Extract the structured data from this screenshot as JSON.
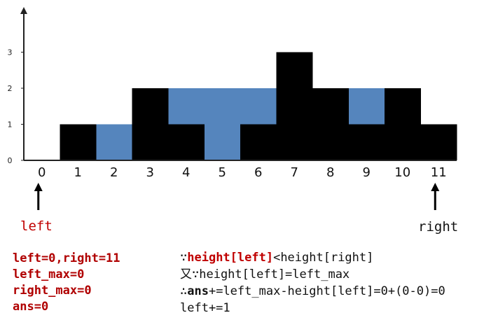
{
  "chart_data": {
    "type": "bar",
    "categories": [
      "0",
      "1",
      "2",
      "3",
      "4",
      "5",
      "6",
      "7",
      "8",
      "9",
      "10",
      "11"
    ],
    "heights": [
      0,
      1,
      0,
      2,
      1,
      0,
      1,
      3,
      2,
      1,
      2,
      1
    ],
    "water": [
      0,
      0,
      1,
      0,
      1,
      2,
      1,
      0,
      0,
      1,
      0,
      0
    ],
    "y_ticks": [
      "0",
      "1",
      "2",
      "3"
    ],
    "ylim": [
      0,
      4.2
    ],
    "bar_color": "#000000",
    "water_color": "#5585bd"
  },
  "pointers": {
    "left": {
      "label": "left",
      "index": 0,
      "color": "#c00000"
    },
    "right": {
      "label": "right",
      "index": 11,
      "color": "#111111"
    }
  },
  "variables": [
    "left=0,right=11",
    "left_max=0",
    "right_max=0",
    "ans=0"
  ],
  "explanation": {
    "line1": {
      "prefix": "∵",
      "highlight": "height[left]",
      "rest": "<height[right]"
    },
    "line2": "又∵height[left]=left_max",
    "line3": {
      "prefix": "∴",
      "bold": "ans",
      "rest": "+=left_max-height[left]=0+(0-0)=0"
    },
    "line4": "left+=1"
  }
}
